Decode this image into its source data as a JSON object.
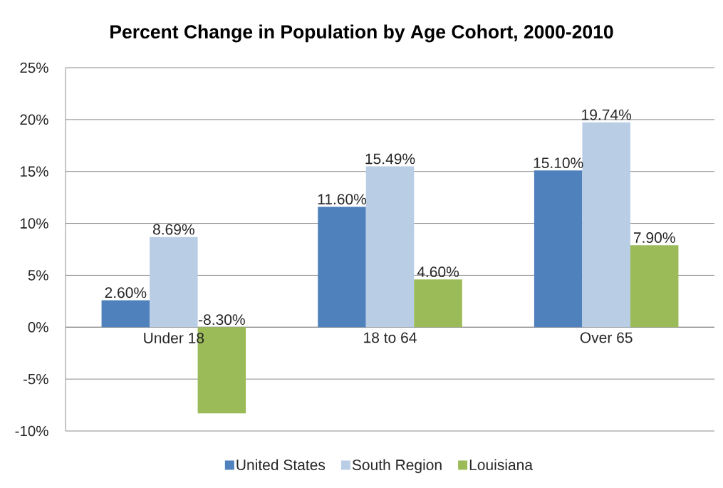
{
  "chart_data": {
    "type": "bar",
    "title": "Percent Change in Population by Age Cohort, 2000-2010",
    "categories": [
      "Under 18",
      "18 to 64",
      "Over 65"
    ],
    "series": [
      {
        "name": "United States",
        "color": "#4f81bd",
        "values": [
          2.6,
          11.6,
          15.1
        ],
        "value_labels": [
          "2.60%",
          "11.60%",
          "15.10%"
        ]
      },
      {
        "name": "South Region",
        "color": "#b9cde5",
        "values": [
          8.69,
          15.49,
          19.74
        ],
        "value_labels": [
          "8.69%",
          "15.49%",
          "19.74%"
        ]
      },
      {
        "name": "Louisiana",
        "color": "#9bbb59",
        "values": [
          -8.3,
          4.6,
          7.9
        ],
        "value_labels": [
          "-8.30%",
          "4.60%",
          "7.90%"
        ]
      }
    ],
    "ylim": [
      -10,
      25
    ],
    "yticks": [
      {
        "value": -10,
        "label": "-10%"
      },
      {
        "value": -5,
        "label": "-5%"
      },
      {
        "value": 0,
        "label": "0%"
      },
      {
        "value": 5,
        "label": "5%"
      },
      {
        "value": 10,
        "label": "10%"
      },
      {
        "value": 15,
        "label": "15%"
      },
      {
        "value": 20,
        "label": "20%"
      },
      {
        "value": 25,
        "label": "25%"
      }
    ],
    "grid": "y",
    "legend": "bottom"
  }
}
